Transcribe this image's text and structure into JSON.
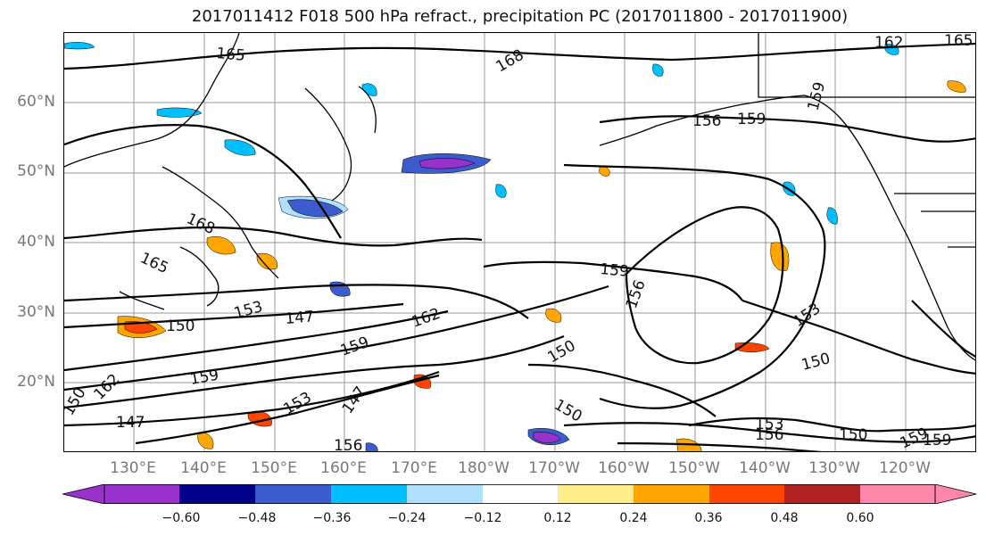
{
  "title": "2017011412 F018 500 hPa refract., precipitation PC (2017011800 - 2017011900)",
  "lat_labels": [
    "60°N",
    "50°N",
    "40°N",
    "30°N",
    "20°N"
  ],
  "lon_labels": [
    "130°E",
    "140°E",
    "150°E",
    "160°E",
    "170°E",
    "180°W",
    "170°W",
    "160°W",
    "150°W",
    "140°W",
    "130°W",
    "120°W"
  ],
  "contour_labels": [
    "165",
    "168",
    "156",
    "159",
    "162",
    "165",
    "159",
    "168",
    "165",
    "153",
    "150",
    "147",
    "162",
    "159",
    "159",
    "147",
    "153",
    "147",
    "162",
    "156",
    "150",
    "159",
    "156",
    "153",
    "150",
    "150",
    "150",
    "153",
    "156",
    "150",
    "159",
    "159"
  ],
  "colorbar": {
    "ticks": [
      "−0.60",
      "−0.48",
      "−0.36",
      "−0.24",
      "−0.12",
      "0.12",
      "0.24",
      "0.36",
      "0.48",
      "0.60"
    ],
    "colors": [
      "#9932cc",
      "#00008b",
      "#3a5ccc",
      "#00bfff",
      "#b0e0ff",
      "#ffffff",
      "#ffec8b",
      "#ffa500",
      "#ff4500",
      "#b22222",
      "#ff88aa",
      "#ff88aa"
    ]
  }
}
